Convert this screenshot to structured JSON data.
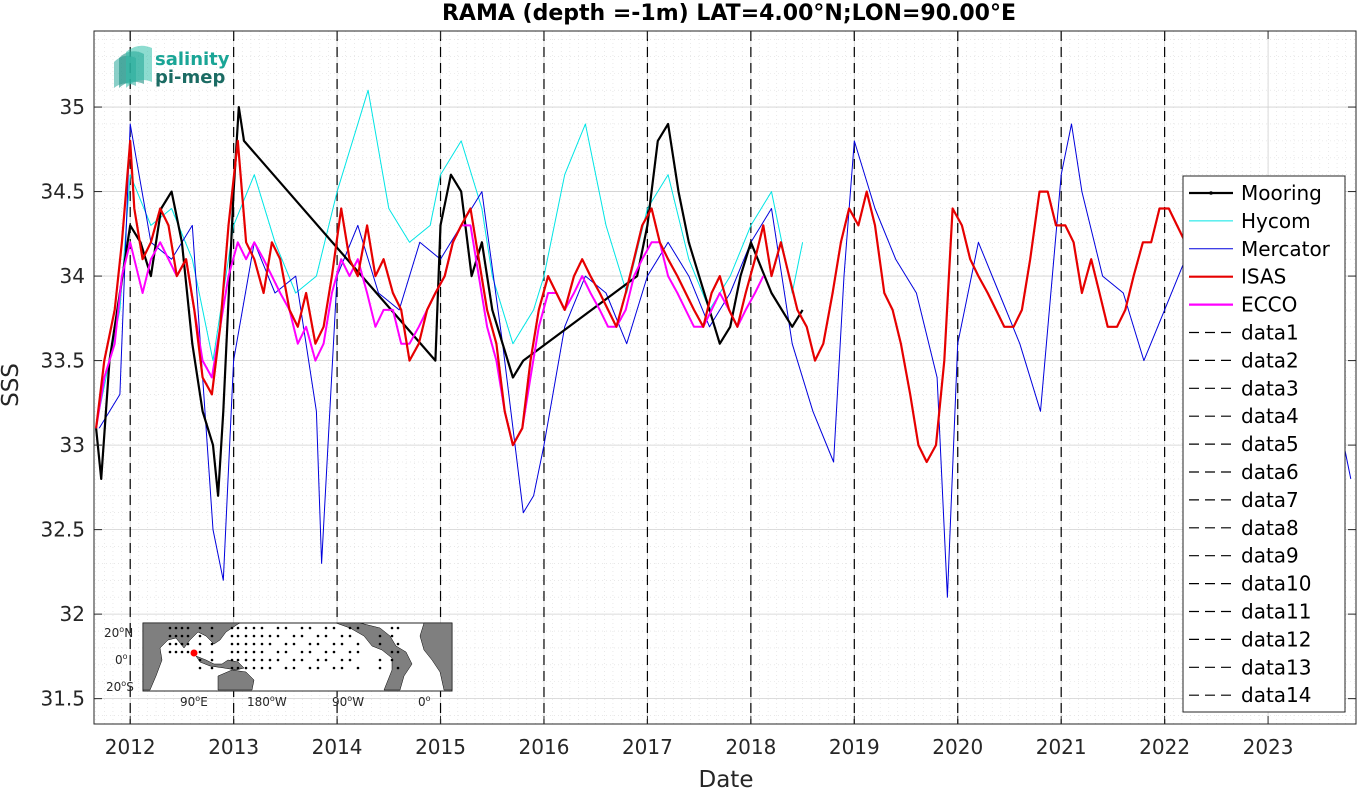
{
  "chart_data": {
    "type": "line",
    "title": "RAMA (depth =-1m) LAT=4.00°N;LON=90.00°E",
    "xlabel": "Date",
    "ylabel": "SSS",
    "xlim": [
      2011.65,
      2023.85
    ],
    "ylim": [
      31.35,
      35.45
    ],
    "grid": true,
    "legend_position": "right",
    "x_tick_labels": [
      "2012",
      "2013",
      "2014",
      "2015",
      "2016",
      "2017",
      "2018",
      "2019",
      "2020",
      "2021",
      "2022",
      "2023"
    ],
    "x_ticks": [
      2012,
      2013,
      2014,
      2015,
      2016,
      2017,
      2018,
      2019,
      2020,
      2021,
      2022,
      2023
    ],
    "y_tick_labels": [
      "31.5",
      "32",
      "32.5",
      "33",
      "33.5",
      "34",
      "34.5",
      "35"
    ],
    "y_ticks": [
      31.5,
      32,
      32.5,
      33,
      33.5,
      34,
      34.5,
      35
    ],
    "vertical_dashed_lines_x": [
      2012,
      2013,
      2014,
      2015,
      2016,
      2017,
      2018,
      2019,
      2020,
      2021,
      2022
    ],
    "series": [
      {
        "name": "Mooring",
        "color": "#000000",
        "x": [
          2011.67,
          2011.72,
          2011.8,
          2011.9,
          2012.0,
          2012.1,
          2012.2,
          2012.3,
          2012.4,
          2012.5,
          2012.6,
          2012.7,
          2012.8,
          2012.85,
          2012.9,
          2013.0,
          2013.05,
          2013.1,
          2014.95,
          2015.0,
          2015.1,
          2015.2,
          2015.3,
          2015.4,
          2015.5,
          2015.6,
          2015.7,
          2015.8,
          2016.9,
          2017.0,
          2017.1,
          2017.2,
          2017.3,
          2017.4,
          2017.5,
          2017.6,
          2017.7,
          2017.8,
          2017.9,
          2018.0,
          2018.2,
          2018.4,
          2018.5
        ],
        "y": [
          33.1,
          32.8,
          33.5,
          33.9,
          34.3,
          34.2,
          34.0,
          34.4,
          34.5,
          34.2,
          33.6,
          33.2,
          33.0,
          32.7,
          33.2,
          34.5,
          35.0,
          34.8,
          33.5,
          34.3,
          34.6,
          34.5,
          34.0,
          34.2,
          33.8,
          33.6,
          33.4,
          33.5,
          34.0,
          34.3,
          34.8,
          34.9,
          34.5,
          34.2,
          34.0,
          33.8,
          33.6,
          33.7,
          34.0,
          34.2,
          33.9,
          33.7,
          33.8
        ]
      },
      {
        "name": "Hycom",
        "color": "#00e5e5",
        "x": [
          2011.7,
          2011.9,
          2012.0,
          2012.2,
          2012.4,
          2012.6,
          2012.8,
          2013.0,
          2013.2,
          2013.4,
          2013.6,
          2013.8,
          2014.0,
          2014.2,
          2014.3,
          2014.5,
          2014.7,
          2014.9,
          2015.0,
          2015.2,
          2015.4,
          2015.5,
          2015.7,
          2015.9,
          2016.0,
          2016.2,
          2016.4,
          2016.6,
          2016.8,
          2017.0,
          2017.2,
          2017.4,
          2017.6,
          2017.8,
          2018.0,
          2018.2,
          2018.4,
          2018.5
        ],
        "y": [
          33.2,
          33.8,
          34.6,
          34.3,
          34.4,
          34.1,
          33.5,
          34.3,
          34.6,
          34.2,
          33.9,
          34.0,
          34.5,
          34.9,
          35.1,
          34.4,
          34.2,
          34.3,
          34.6,
          34.8,
          34.4,
          34.0,
          33.6,
          33.8,
          34.0,
          34.6,
          34.9,
          34.3,
          33.9,
          34.4,
          34.6,
          34.1,
          33.8,
          34.0,
          34.3,
          34.5,
          33.9,
          34.2
        ]
      },
      {
        "name": "Mercator",
        "color": "#0000dd",
        "x": [
          2011.7,
          2011.9,
          2012.0,
          2012.2,
          2012.4,
          2012.6,
          2012.8,
          2012.9,
          2013.0,
          2013.2,
          2013.4,
          2013.6,
          2013.8,
          2013.85,
          2014.0,
          2014.2,
          2014.4,
          2014.6,
          2014.8,
          2015.0,
          2015.2,
          2015.4,
          2015.6,
          2015.8,
          2015.9,
          2016.0,
          2016.2,
          2016.4,
          2016.6,
          2016.8,
          2017.0,
          2017.2,
          2017.4,
          2017.6,
          2017.8,
          2018.0,
          2018.2,
          2018.4,
          2018.6,
          2018.8,
          2018.9,
          2019.0,
          2019.2,
          2019.4,
          2019.6,
          2019.8,
          2019.9,
          2020.0,
          2020.2,
          2020.4,
          2020.6,
          2020.8,
          2021.0,
          2021.1,
          2021.2,
          2021.4,
          2021.6,
          2021.8,
          2022.0,
          2022.2,
          2022.4,
          2022.6,
          2022.8,
          2023.0,
          2023.2,
          2023.4,
          2023.6,
          2023.8
        ],
        "y": [
          33.1,
          33.3,
          34.9,
          34.2,
          34.1,
          34.3,
          32.5,
          32.2,
          33.5,
          34.2,
          33.9,
          34.0,
          33.2,
          32.3,
          34.0,
          34.3,
          33.9,
          33.8,
          34.2,
          34.1,
          34.3,
          34.5,
          33.6,
          32.6,
          32.7,
          33.0,
          33.7,
          34.0,
          33.9,
          33.6,
          34.0,
          34.2,
          34.0,
          33.7,
          33.9,
          34.2,
          34.4,
          33.6,
          33.2,
          32.9,
          34.0,
          34.8,
          34.4,
          34.1,
          33.9,
          33.4,
          32.1,
          33.6,
          34.2,
          33.9,
          33.6,
          33.2,
          34.6,
          34.9,
          34.5,
          34.0,
          33.9,
          33.5,
          33.8,
          34.1,
          34.3,
          33.8,
          33.5,
          34.1,
          34.0,
          33.7,
          33.4,
          32.8
        ]
      },
      {
        "name": "ISAS",
        "color": "#e60000",
        "x": [
          2011.67,
          2011.75,
          2011.85,
          2011.92,
          2012.0,
          2012.04,
          2012.12,
          2012.2,
          2012.29,
          2012.37,
          2012.45,
          2012.54,
          2012.62,
          2012.7,
          2012.79,
          2012.87,
          2012.95,
          2013.04,
          2013.12,
          2013.2,
          2013.29,
          2013.37,
          2013.45,
          2013.54,
          2013.62,
          2013.7,
          2013.79,
          2013.87,
          2013.95,
          2014.04,
          2014.12,
          2014.2,
          2014.29,
          2014.37,
          2014.45,
          2014.54,
          2014.62,
          2014.7,
          2014.79,
          2014.87,
          2014.95,
          2015.04,
          2015.12,
          2015.2,
          2015.29,
          2015.37,
          2015.45,
          2015.54,
          2015.62,
          2015.7,
          2015.79,
          2015.87,
          2015.95,
          2016.04,
          2016.12,
          2016.2,
          2016.29,
          2016.37,
          2016.45,
          2016.54,
          2016.62,
          2016.7,
          2016.79,
          2016.87,
          2016.95,
          2017.04,
          2017.12,
          2017.2,
          2017.29,
          2017.37,
          2017.45,
          2017.54,
          2017.62,
          2017.7,
          2017.79,
          2017.87,
          2017.95,
          2018.04,
          2018.12,
          2018.2,
          2018.29,
          2018.37,
          2018.45,
          2018.54,
          2018.62,
          2018.7,
          2018.79,
          2018.87,
          2018.95,
          2019.04,
          2019.12,
          2019.2,
          2019.29,
          2019.37,
          2019.45,
          2019.54,
          2019.62,
          2019.7,
          2019.79,
          2019.87,
          2019.95,
          2020.04,
          2020.12,
          2020.2,
          2020.29,
          2020.37,
          2020.45,
          2020.54,
          2020.62,
          2020.7,
          2020.79,
          2020.87,
          2020.95,
          2021.04,
          2021.12,
          2021.2,
          2021.29,
          2021.37,
          2021.45,
          2021.54,
          2021.62,
          2021.7,
          2021.79,
          2021.87,
          2021.95,
          2022.04,
          2022.12,
          2022.2
        ],
        "y": [
          33.1,
          33.5,
          33.8,
          34.2,
          34.8,
          34.4,
          34.1,
          34.2,
          34.4,
          34.3,
          34.0,
          34.1,
          33.8,
          33.4,
          33.3,
          33.7,
          34.3,
          34.8,
          34.2,
          34.1,
          33.9,
          34.2,
          34.1,
          33.8,
          33.7,
          33.9,
          33.6,
          33.7,
          34.0,
          34.4,
          34.1,
          34.0,
          34.3,
          34.0,
          34.1,
          33.9,
          33.8,
          33.5,
          33.6,
          33.8,
          33.9,
          34.0,
          34.2,
          34.3,
          34.4,
          34.1,
          33.8,
          33.6,
          33.2,
          33.0,
          33.1,
          33.5,
          33.8,
          34.0,
          33.9,
          33.8,
          34.0,
          34.1,
          34.0,
          33.9,
          33.8,
          33.7,
          33.9,
          34.1,
          34.3,
          34.4,
          34.2,
          34.1,
          34.0,
          33.9,
          33.8,
          33.7,
          33.9,
          34.0,
          33.8,
          33.7,
          33.9,
          34.1,
          34.3,
          34.0,
          34.2,
          34.0,
          33.8,
          33.7,
          33.5,
          33.6,
          33.9,
          34.2,
          34.4,
          34.3,
          34.5,
          34.3,
          33.9,
          33.8,
          33.6,
          33.3,
          33.0,
          32.9,
          33.0,
          33.5,
          34.4,
          34.3,
          34.1,
          34.0,
          33.9,
          33.8,
          33.7,
          33.7,
          33.8,
          34.1,
          34.5,
          34.5,
          34.3,
          34.3,
          34.2,
          33.9,
          34.1,
          33.9,
          33.7,
          33.7,
          33.8,
          34.0,
          34.2,
          34.2,
          34.4,
          34.4,
          34.3,
          34.2
        ]
      },
      {
        "name": "ECCO",
        "color": "#ff00ff",
        "x": [
          2011.67,
          2011.75,
          2011.85,
          2011.92,
          2012.0,
          2012.04,
          2012.12,
          2012.2,
          2012.29,
          2012.37,
          2012.45,
          2012.54,
          2012.62,
          2012.7,
          2012.79,
          2012.87,
          2012.95,
          2013.04,
          2013.12,
          2013.2,
          2013.29,
          2013.37,
          2013.45,
          2013.54,
          2013.62,
          2013.7,
          2013.79,
          2013.87,
          2013.95,
          2014.04,
          2014.12,
          2014.2,
          2014.29,
          2014.37,
          2014.45,
          2014.54,
          2014.62,
          2014.7,
          2014.79,
          2014.87,
          2014.95,
          2015.04,
          2015.12,
          2015.2,
          2015.29,
          2015.37,
          2015.45,
          2015.54,
          2015.62,
          2015.7,
          2015.79,
          2015.87,
          2015.95,
          2016.04,
          2016.12,
          2016.2,
          2016.29,
          2016.37,
          2016.45,
          2016.54,
          2016.62,
          2016.7,
          2016.79,
          2016.87,
          2016.95,
          2017.04,
          2017.12,
          2017.2,
          2017.29,
          2017.37,
          2017.45,
          2017.54,
          2017.62,
          2017.7,
          2017.79,
          2017.87,
          2017.95,
          2018.04,
          2018.12
        ],
        "y": [
          33.1,
          33.4,
          33.6,
          34.0,
          34.2,
          34.1,
          33.9,
          34.1,
          34.2,
          34.1,
          34.0,
          34.1,
          33.8,
          33.5,
          33.4,
          33.7,
          34.0,
          34.2,
          34.1,
          34.2,
          34.1,
          34.0,
          33.9,
          33.8,
          33.6,
          33.7,
          33.5,
          33.6,
          33.9,
          34.1,
          34.0,
          34.1,
          33.9,
          33.7,
          33.8,
          33.8,
          33.6,
          33.6,
          33.7,
          33.8,
          33.9,
          34.0,
          34.2,
          34.3,
          34.3,
          34.0,
          33.7,
          33.5,
          33.2,
          33.0,
          33.1,
          33.4,
          33.7,
          33.9,
          33.9,
          33.8,
          33.9,
          34.0,
          33.9,
          33.8,
          33.7,
          33.7,
          33.8,
          34.0,
          34.1,
          34.2,
          34.2,
          34.0,
          33.9,
          33.8,
          33.7,
          33.7,
          33.8,
          33.9,
          33.8,
          33.7,
          33.8,
          33.9,
          34.0
        ]
      }
    ],
    "legend": [
      {
        "label": "Mooring",
        "color": "#000000",
        "style": "solid-marker"
      },
      {
        "label": "Hycom",
        "color": "#00e5e5",
        "style": "solid"
      },
      {
        "label": "Mercator",
        "color": "#0000dd",
        "style": "solid"
      },
      {
        "label": "ISAS",
        "color": "#e60000",
        "style": "solid-thick"
      },
      {
        "label": "ECCO",
        "color": "#ff00ff",
        "style": "solid-thick"
      },
      {
        "label": "data1",
        "color": "#000000",
        "style": "dashed"
      },
      {
        "label": "data2",
        "color": "#000000",
        "style": "dashed"
      },
      {
        "label": "data3",
        "color": "#000000",
        "style": "dashed"
      },
      {
        "label": "data4",
        "color": "#000000",
        "style": "dashed"
      },
      {
        "label": "data5",
        "color": "#000000",
        "style": "dashed"
      },
      {
        "label": "data6",
        "color": "#000000",
        "style": "dashed"
      },
      {
        "label": "data7",
        "color": "#000000",
        "style": "dashed"
      },
      {
        "label": "data8",
        "color": "#000000",
        "style": "dashed"
      },
      {
        "label": "data9",
        "color": "#000000",
        "style": "dashed"
      },
      {
        "label": "data10",
        "color": "#000000",
        "style": "dashed"
      },
      {
        "label": "data11",
        "color": "#000000",
        "style": "dashed"
      },
      {
        "label": "data12",
        "color": "#000000",
        "style": "dashed"
      },
      {
        "label": "data13",
        "color": "#000000",
        "style": "dashed"
      },
      {
        "label": "data14",
        "color": "#000000",
        "style": "dashed"
      }
    ]
  },
  "logo": {
    "line1": "salinity",
    "line2": "pi-mep",
    "color1": "#1aa596",
    "color2": "#1b6b63"
  },
  "inset_map": {
    "y_labels": [
      "20",
      "N",
      "0",
      "20",
      "S"
    ],
    "x_labels": [
      "90",
      "E",
      "180",
      "W",
      "90",
      "W",
      "0"
    ],
    "degree": "o",
    "land_color": "#7f7f7f",
    "marker_color": "#ff0000"
  }
}
